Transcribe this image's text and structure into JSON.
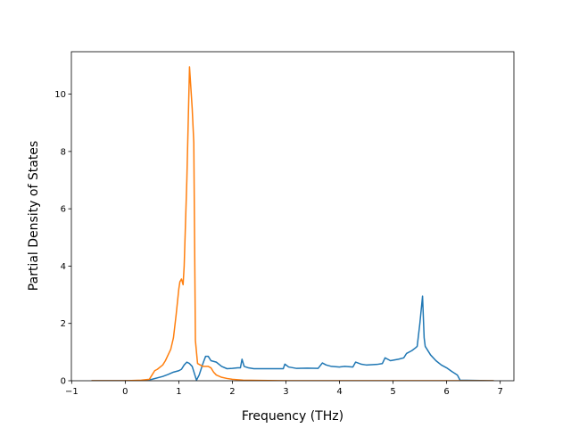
{
  "chart_data": {
    "type": "line",
    "x_label": "Frequency (THz)",
    "y_label": "Partial Density of States",
    "xlim": [
      -1.0055,
      7.2555
    ],
    "ylim": [
      0,
      11.48
    ],
    "xticks": [
      {
        "value": -1,
        "label": "−1"
      },
      0,
      1,
      2,
      3,
      4,
      5,
      6,
      7
    ],
    "yticks": [
      0,
      2,
      4,
      6,
      8,
      10
    ],
    "series": [
      {
        "color": "#1f77b4",
        "x": [
          -0.63,
          0.3,
          0.5,
          0.7,
          0.8,
          0.9,
          1.0,
          1.05,
          1.1,
          1.15,
          1.2,
          1.25,
          1.3,
          1.33,
          1.38,
          1.45,
          1.5,
          1.55,
          1.6,
          1.7,
          1.8,
          1.9,
          2.0,
          2.1,
          2.15,
          2.18,
          2.22,
          2.3,
          2.4,
          2.6,
          2.8,
          2.95,
          2.98,
          3.05,
          3.2,
          3.4,
          3.6,
          3.68,
          3.75,
          3.85,
          4.0,
          4.1,
          4.25,
          4.3,
          4.4,
          4.5,
          4.7,
          4.8,
          4.85,
          4.9,
          4.95,
          5.1,
          5.2,
          5.25,
          5.35,
          5.42,
          5.45,
          5.5,
          5.55,
          5.58,
          5.6,
          5.7,
          5.8,
          5.9,
          6.0,
          6.1,
          6.2,
          6.25,
          6.88
        ],
        "values": [
          0,
          0,
          0.05,
          0.15,
          0.22,
          0.3,
          0.35,
          0.4,
          0.55,
          0.65,
          0.6,
          0.5,
          0.2,
          0.02,
          0.2,
          0.6,
          0.85,
          0.85,
          0.7,
          0.65,
          0.5,
          0.42,
          0.43,
          0.45,
          0.45,
          0.75,
          0.5,
          0.45,
          0.42,
          0.42,
          0.42,
          0.42,
          0.58,
          0.48,
          0.43,
          0.44,
          0.43,
          0.62,
          0.55,
          0.5,
          0.48,
          0.5,
          0.48,
          0.65,
          0.58,
          0.55,
          0.57,
          0.6,
          0.8,
          0.75,
          0.7,
          0.75,
          0.8,
          0.95,
          1.05,
          1.15,
          1.2,
          2.0,
          2.95,
          1.5,
          1.2,
          0.9,
          0.7,
          0.55,
          0.45,
          0.32,
          0.2,
          0.02,
          0
        ]
      },
      {
        "color": "#ff7f0e",
        "x": [
          -0.63,
          0.0,
          0.3,
          0.45,
          0.5,
          0.55,
          0.6,
          0.7,
          0.75,
          0.8,
          0.85,
          0.9,
          0.95,
          1.0,
          1.02,
          1.05,
          1.08,
          1.1,
          1.15,
          1.2,
          1.25,
          1.28,
          1.31,
          1.35,
          1.4,
          1.45,
          1.55,
          1.6,
          1.65,
          1.7,
          1.8,
          1.9,
          2.0,
          2.2,
          2.5,
          3.0,
          6.88
        ],
        "values": [
          0,
          0,
          0.02,
          0.05,
          0.2,
          0.35,
          0.4,
          0.55,
          0.7,
          0.9,
          1.1,
          1.5,
          2.3,
          3.2,
          3.45,
          3.55,
          3.35,
          4.0,
          7.0,
          10.95,
          9.5,
          8.3,
          1.4,
          0.6,
          0.55,
          0.5,
          0.5,
          0.45,
          0.3,
          0.2,
          0.12,
          0.08,
          0.05,
          0.02,
          0.01,
          0,
          0
        ]
      }
    ]
  }
}
